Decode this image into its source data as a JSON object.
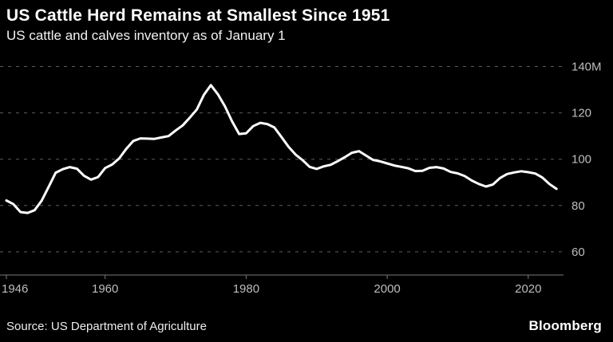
{
  "header": {
    "title": "US Cattle Herd Remains at Smallest Since 1951",
    "subtitle": "US cattle and calves inventory as of January 1"
  },
  "footer": {
    "source": "Source: US Department of Agriculture",
    "brand": "Bloomberg"
  },
  "chart_data": {
    "type": "line",
    "title": "US Cattle Herd Remains at Smallest Since 1951",
    "subtitle": "US cattle and calves inventory as of January 1",
    "series_name": "US cattle and calves inventory (million head)",
    "x": [
      1946,
      1947,
      1948,
      1949,
      1950,
      1951,
      1952,
      1953,
      1954,
      1955,
      1956,
      1957,
      1958,
      1959,
      1960,
      1961,
      1962,
      1963,
      1964,
      1965,
      1966,
      1967,
      1968,
      1969,
      1970,
      1971,
      1972,
      1973,
      1974,
      1975,
      1976,
      1977,
      1978,
      1979,
      1980,
      1981,
      1982,
      1983,
      1984,
      1985,
      1986,
      1987,
      1988,
      1989,
      1990,
      1991,
      1992,
      1993,
      1994,
      1995,
      1996,
      1997,
      1998,
      1999,
      2000,
      2001,
      2002,
      2003,
      2004,
      2005,
      2006,
      2007,
      2008,
      2009,
      2010,
      2011,
      2012,
      2013,
      2014,
      2015,
      2016,
      2017,
      2018,
      2019,
      2020,
      2021,
      2022,
      2023,
      2024
    ],
    "values": [
      82.2,
      80.6,
      77.2,
      76.8,
      78.0,
      82.1,
      88.1,
      94.2,
      95.7,
      96.6,
      95.9,
      92.9,
      91.2,
      92.3,
      96.2,
      97.7,
      100.4,
      104.5,
      107.9,
      109.0,
      108.9,
      108.8,
      109.4,
      110.0,
      112.4,
      114.6,
      117.9,
      121.5,
      127.8,
      132.0,
      128.0,
      122.8,
      116.4,
      110.9,
      111.2,
      114.3,
      115.7,
      115.2,
      113.7,
      109.6,
      105.4,
      102.0,
      99.6,
      96.7,
      95.8,
      96.9,
      97.6,
      99.2,
      100.9,
      102.8,
      103.5,
      101.6,
      99.7,
      99.1,
      98.2,
      97.3,
      96.7,
      96.1,
      94.9,
      95.0,
      96.3,
      96.6,
      96.0,
      94.5,
      93.9,
      92.7,
      90.8,
      89.3,
      88.2,
      89.1,
      91.9,
      93.6,
      94.3,
      94.8,
      94.4,
      93.8,
      92.1,
      89.3,
      87.2
    ],
    "xticks": [
      1946,
      1960,
      1980,
      2000,
      2020
    ],
    "yticks": [
      60,
      80,
      100,
      120,
      140
    ],
    "ytick_labels": [
      "60",
      "80",
      "100",
      "120",
      "140M"
    ],
    "xlim": [
      1946,
      2025
    ],
    "ylim": [
      50,
      145
    ],
    "grid": "dashed horizontal",
    "legend": "none",
    "colors": {
      "background": "#000000",
      "line": "#ffffff",
      "grid": "#5c5c5c",
      "axis": "#7a7a7a",
      "tick_label": "#bdbdbd"
    }
  }
}
